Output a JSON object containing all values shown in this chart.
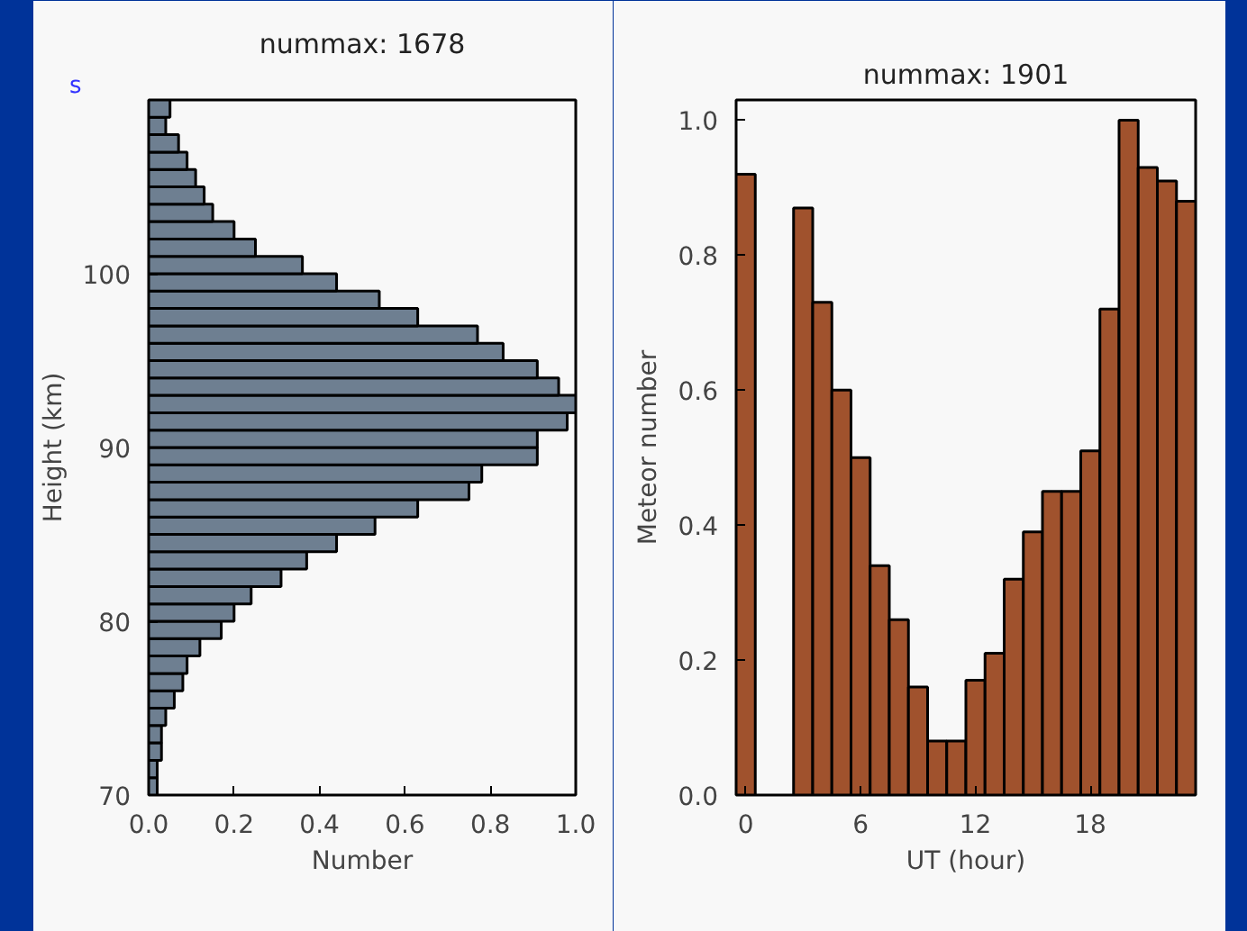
{
  "chart_data": [
    {
      "type": "histogram",
      "orientation": "horizontal",
      "title": "nummax: 1678",
      "xlabel": "Number",
      "ylabel": "Height (km)",
      "color": "#6e7f91",
      "bins": [
        70,
        71,
        72,
        73,
        74,
        75,
        76,
        77,
        78,
        79,
        80,
        81,
        82,
        83,
        84,
        85,
        86,
        87,
        88,
        89,
        90,
        91,
        92,
        93,
        94,
        95,
        96,
        97,
        98,
        99,
        100,
        101,
        102,
        103,
        104,
        105,
        106,
        107,
        108,
        109,
        110
      ],
      "values": [
        0.02,
        0.02,
        0.03,
        0.03,
        0.04,
        0.06,
        0.08,
        0.09,
        0.12,
        0.17,
        0.2,
        0.24,
        0.31,
        0.37,
        0.44,
        0.53,
        0.63,
        0.75,
        0.78,
        0.91,
        0.91,
        0.98,
        1.0,
        0.96,
        0.91,
        0.83,
        0.77,
        0.63,
        0.54,
        0.44,
        0.36,
        0.25,
        0.2,
        0.15,
        0.13,
        0.11,
        0.09,
        0.07,
        0.04,
        0.05
      ],
      "xlim": [
        0,
        1
      ],
      "xticks": [
        {
          "value": 0,
          "label": "0.0"
        },
        {
          "value": 0.2,
          "label": "0.2"
        },
        {
          "value": 0.4,
          "label": "0.4"
        },
        {
          "value": 0.6,
          "label": "0.6"
        },
        {
          "value": 0.8,
          "label": "0.8"
        },
        {
          "value": 1,
          "label": "1.0"
        }
      ],
      "ylim": [
        70,
        110
      ],
      "yticks": [
        70,
        80,
        90,
        100
      ],
      "grid": false,
      "annotations": [
        "s"
      ]
    },
    {
      "type": "histogram",
      "title": "nummax: 1901",
      "xlabel": "UT (hour)",
      "ylabel": "Meteor number",
      "color": "#a0522d",
      "bins": [
        -0.5,
        0.5,
        1.5,
        2.5,
        3.5,
        4.5,
        5.5,
        6.5,
        7.5,
        8.5,
        9.5,
        10.5,
        11.5,
        12.5,
        13.5,
        14.5,
        15.5,
        16.5,
        17.5,
        18.5,
        19.5,
        20.5,
        21.5,
        22.5,
        23.5
      ],
      "values": [
        0.92,
        null,
        null,
        0.87,
        0.73,
        0.6,
        0.5,
        0.34,
        0.26,
        0.16,
        0.08,
        0.08,
        0.17,
        0.21,
        0.32,
        0.39,
        0.45,
        0.45,
        0.51,
        0.72,
        1.0,
        0.93,
        0.91,
        0.88
      ],
      "xlim": [
        -0.5,
        23.5
      ],
      "xticks": [
        0,
        6,
        12,
        18
      ],
      "ylim": [
        0,
        1.03
      ],
      "yticks": [
        {
          "value": 0,
          "label": "0.0"
        },
        {
          "value": 0.2,
          "label": "0.2"
        },
        {
          "value": 0.4,
          "label": "0.4"
        },
        {
          "value": 0.6,
          "label": "0.6"
        },
        {
          "value": 0.8,
          "label": "0.8"
        },
        {
          "value": 1,
          "label": "1.0"
        }
      ],
      "grid": false
    }
  ]
}
